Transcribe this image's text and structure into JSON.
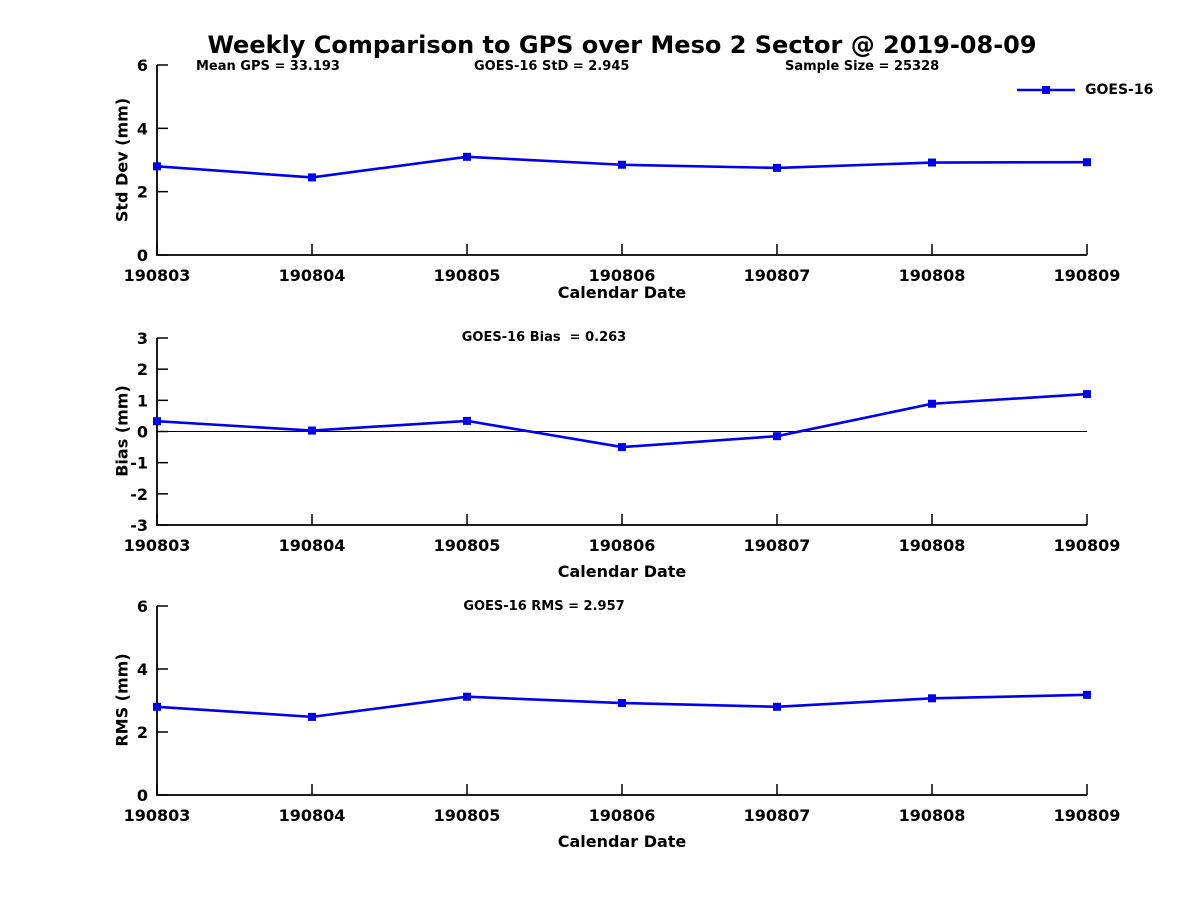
{
  "title": "Weekly Comparison to GPS over Meso 2 Sector @ 2019-08-09",
  "header_annotations": {
    "mean_gps": "Mean GPS = 33.193",
    "goes_std": "GOES-16 StD = 2.945",
    "sample_size": "Sample Size = 25328"
  },
  "legend": {
    "label": "GOES-16",
    "line_color": "#0000EE"
  },
  "chart_data": [
    {
      "type": "line",
      "id": "std-dev",
      "annotation": "",
      "xlabel": "Calendar Date",
      "ylabel": "Std Dev (mm)",
      "x": [
        "190803",
        "190804",
        "190805",
        "190806",
        "190807",
        "190808",
        "190809"
      ],
      "series": [
        {
          "name": "GOES-16",
          "color": "#0000EE",
          "marker": "square",
          "values": [
            2.8,
            2.45,
            3.1,
            2.85,
            2.75,
            2.92,
            2.93
          ]
        }
      ],
      "ylim": [
        0,
        6
      ],
      "yticks": [
        0,
        2,
        4,
        6
      ],
      "zero_line": false,
      "grid": false,
      "legend_position": "top-right"
    },
    {
      "type": "line",
      "id": "bias",
      "annotation": "GOES-16 Bias  = 0.263",
      "xlabel": "Calendar Date",
      "ylabel": "Bias (mm)",
      "x": [
        "190803",
        "190804",
        "190805",
        "190806",
        "190807",
        "190808",
        "190809"
      ],
      "series": [
        {
          "name": "GOES-16",
          "color": "#0000EE",
          "marker": "square",
          "values": [
            0.33,
            0.03,
            0.34,
            -0.5,
            -0.15,
            0.89,
            1.2
          ]
        }
      ],
      "ylim": [
        -3,
        3
      ],
      "yticks": [
        -3,
        -2,
        -1,
        0,
        1,
        2,
        3
      ],
      "zero_line": true,
      "grid": false
    },
    {
      "type": "line",
      "id": "rms",
      "annotation": "GOES-16 RMS = 2.957",
      "xlabel": "Calendar Date",
      "ylabel": "RMS (mm)",
      "x": [
        "190803",
        "190804",
        "190805",
        "190806",
        "190807",
        "190808",
        "190809"
      ],
      "series": [
        {
          "name": "GOES-16",
          "color": "#0000EE",
          "marker": "square",
          "values": [
            2.8,
            2.48,
            3.12,
            2.92,
            2.8,
            3.07,
            3.18
          ]
        }
      ],
      "ylim": [
        0,
        6
      ],
      "yticks": [
        0,
        2,
        4,
        6
      ],
      "zero_line": false,
      "grid": false
    }
  ]
}
